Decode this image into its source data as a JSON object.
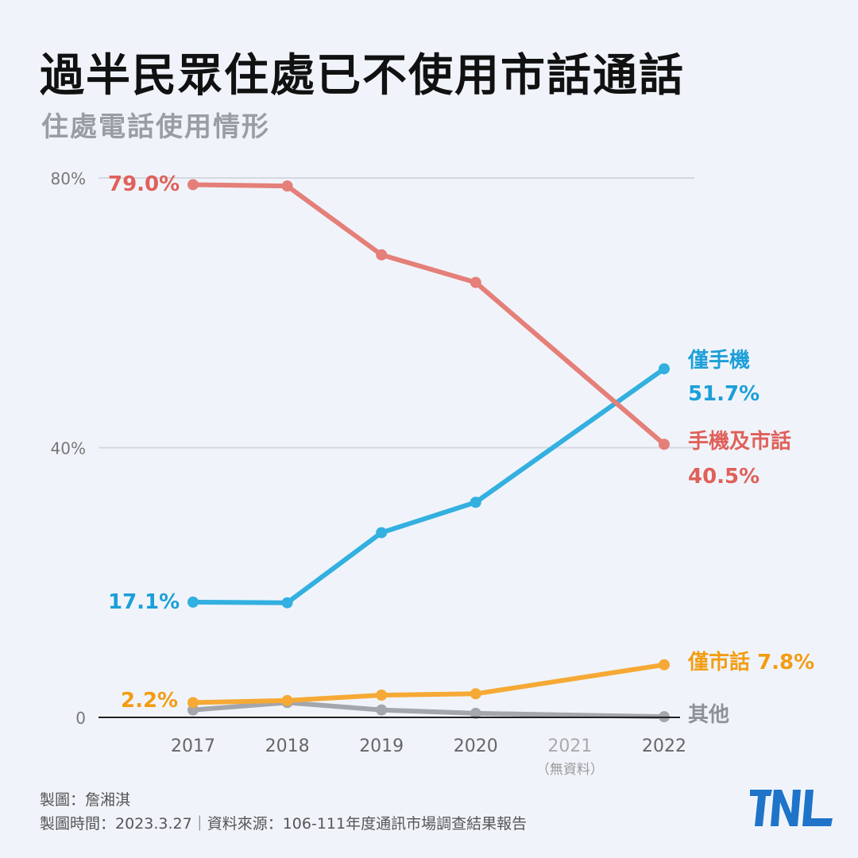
{
  "title": "過半民眾住處已不使用市話通話",
  "subtitle": "住處電話使用情形",
  "chart_data": {
    "type": "line",
    "title": "住處電話使用情形",
    "x": [
      "2017",
      "2018",
      "2019",
      "2020",
      "2021",
      "2022"
    ],
    "x_note": "（無資料）",
    "ylim": [
      0,
      80
    ],
    "yticks": [
      "0",
      "40%",
      "80%"
    ],
    "ytick_values": [
      0,
      40,
      80
    ],
    "grid": true,
    "series": [
      {
        "name": "手機及市話",
        "color": "#e57f79",
        "label_color": "#e0605a",
        "values": [
          79.0,
          78.8,
          68.6,
          64.5,
          null,
          40.5
        ],
        "start_label": "79.0%",
        "end_label": "40.5%"
      },
      {
        "name": "僅手機",
        "color": "#33b0e0",
        "label_color": "#1c9fd8",
        "values": [
          17.1,
          17.0,
          27.4,
          31.9,
          null,
          51.7
        ],
        "start_label": "17.1%",
        "end_label": "51.7%"
      },
      {
        "name": "僅市話",
        "color": "#f6a935",
        "label_color": "#f39c12",
        "values": [
          2.2,
          2.5,
          3.3,
          3.5,
          null,
          7.8
        ],
        "start_label": "2.2%",
        "end_label": "7.8%"
      },
      {
        "name": "其他",
        "color": "#a3a7ac",
        "label_color": "#8e9298",
        "values": [
          1.1,
          2.2,
          1.1,
          0.6,
          null,
          0.1
        ]
      }
    ]
  },
  "footer": {
    "author": "製圖：詹湘淇",
    "meta": "製圖時間：2023.3.27｜資料來源：106-111年度通訊市場調查結果報告"
  },
  "logo": "TNL"
}
